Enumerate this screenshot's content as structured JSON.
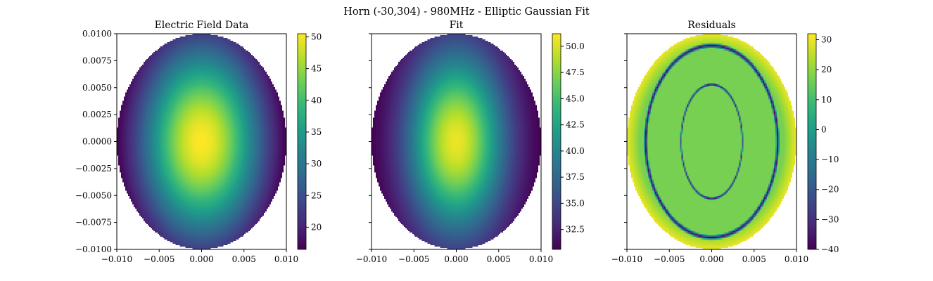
{
  "figure": {
    "suptitle": "Horn (-30,304) - 980MHz  - Elliptic Gaussian Fit"
  },
  "colors": {
    "colormap": "viridis",
    "viridis_stops": [
      "#440154",
      "#482878",
      "#3e4989",
      "#31688e",
      "#26828e",
      "#1f9e89",
      "#35b779",
      "#6ece58",
      "#b5de2b",
      "#fde725"
    ],
    "outside": "#ffffff"
  },
  "chart_data": [
    {
      "type": "heatmap",
      "title": "Electric Field Data",
      "xlabel": "",
      "ylabel": "",
      "xlim": [
        -0.01,
        0.01
      ],
      "ylim": [
        -0.01,
        0.01
      ],
      "x_ticks": [
        "−0.010",
        "−0.005",
        "0.000",
        "0.005",
        "0.010"
      ],
      "y_ticks": [
        "0.0100",
        "0.0075",
        "0.0050",
        "0.0025",
        "0.0000",
        "−0.0025",
        "−0.0050",
        "−0.0075",
        "−0.0100"
      ],
      "y_tick_labels_visible": true,
      "aperture": {
        "shape": "ellipse",
        "center": [
          0,
          0
        ],
        "semi_axis_x": 0.01,
        "semi_axis_y": 0.01
      },
      "field": {
        "model": "elliptic_gaussian",
        "peak": 50.5,
        "edge": 16.5,
        "center": [
          0,
          0
        ],
        "sigma_x": 0.0075,
        "sigma_y": 0.0095
      },
      "colorbar": {
        "min": 16.5,
        "max": 50.5,
        "ticks": [
          20,
          25,
          30,
          35,
          40,
          45,
          50
        ],
        "tick_labels": [
          "20",
          "25",
          "30",
          "35",
          "40",
          "45",
          "50"
        ]
      }
    },
    {
      "type": "heatmap",
      "title": "Fit",
      "xlabel": "",
      "ylabel": "",
      "xlim": [
        -0.01,
        0.01
      ],
      "ylim": [
        -0.01,
        0.01
      ],
      "x_ticks": [
        "−0.010",
        "−0.005",
        "0.000",
        "0.005",
        "0.010"
      ],
      "y_ticks": [],
      "y_tick_labels_visible": false,
      "aperture": {
        "shape": "ellipse",
        "center": [
          0,
          0
        ],
        "semi_axis_x": 0.01,
        "semi_axis_y": 0.01
      },
      "field": {
        "model": "elliptic_gaussian",
        "peak": 50.6,
        "edge": 30.6,
        "center": [
          0,
          0
        ],
        "sigma_x": 0.0058,
        "sigma_y": 0.0085
      },
      "colorbar": {
        "min": 30.6,
        "max": 51.2,
        "ticks": [
          32.5,
          35.0,
          37.5,
          40.0,
          42.5,
          45.0,
          47.5,
          50.0
        ],
        "tick_labels": [
          "32.5",
          "35.0",
          "37.5",
          "40.0",
          "42.5",
          "45.0",
          "47.5",
          "50.0"
        ]
      }
    },
    {
      "type": "heatmap",
      "title": "Residuals",
      "xlabel": "",
      "ylabel": "",
      "xlim": [
        -0.01,
        0.01
      ],
      "ylim": [
        -0.01,
        0.01
      ],
      "x_ticks": [
        "−0.010",
        "−0.005",
        "0.000",
        "0.005",
        "0.010"
      ],
      "y_ticks": [],
      "y_tick_labels_visible": false,
      "aperture": {
        "shape": "ellipse",
        "center": [
          0,
          0
        ],
        "semi_axis_x": 0.01,
        "semi_axis_y": 0.01
      },
      "field": {
        "model": "residual_rings",
        "background": 17,
        "outer_edge": 30,
        "ring_value": -40,
        "rings": [
          {
            "rx": 0.0036,
            "ry": 0.0053
          },
          {
            "rx": 0.0078,
            "ry": 0.0089
          }
        ]
      },
      "colorbar": {
        "min": -40,
        "max": 32,
        "ticks": [
          30,
          20,
          10,
          0,
          -10,
          -20,
          -30,
          -40
        ],
        "tick_labels": [
          "30",
          "20",
          "10",
          "0",
          "−10",
          "−20",
          "−30",
          "−40"
        ]
      }
    }
  ]
}
